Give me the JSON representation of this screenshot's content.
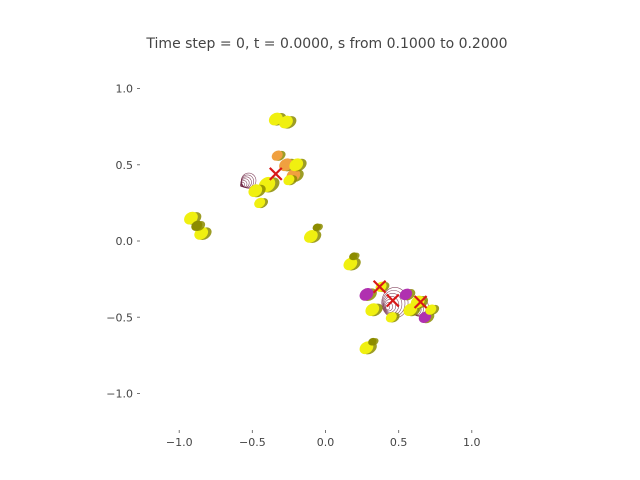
{
  "chart_data": {
    "type": "scatter",
    "title": "Time step = 0, t = 0.0000, s from 0.1000 to 0.2000",
    "xlabel": "",
    "ylabel": "",
    "xlim": [
      -1.2,
      1.2
    ],
    "ylim": [
      -1.2,
      1.2
    ],
    "x_ticks": [
      -1.0,
      -0.5,
      0.0,
      0.5,
      1.0
    ],
    "y_ticks": [
      1.0,
      0.5,
      0.0,
      -0.5,
      -1.0
    ],
    "x_tick_labels": [
      "−1.0",
      "−0.5",
      "0.0",
      "0.5",
      "1.0"
    ],
    "y_tick_labels": [
      "1.0",
      "0.5",
      "0.0",
      "−0.5",
      "−1.0"
    ],
    "grid": false,
    "legend": "none",
    "colors": {
      "yellow": "#f0f010",
      "olive": "#8c8c00",
      "orange": "#f0a040",
      "purple": "#b030b0",
      "cross": "#d81818",
      "contour": "#6b2040"
    },
    "blobs": [
      {
        "x": -0.34,
        "y": 0.8,
        "color": "yellow",
        "size": 0.05
      },
      {
        "x": -0.27,
        "y": 0.78,
        "color": "yellow",
        "size": 0.05
      },
      {
        "x": -0.4,
        "y": 0.37,
        "color": "yellow",
        "size": 0.06
      },
      {
        "x": -0.48,
        "y": 0.33,
        "color": "yellow",
        "size": 0.05
      },
      {
        "x": -0.45,
        "y": 0.25,
        "color": "yellow",
        "size": 0.04
      },
      {
        "x": -0.27,
        "y": 0.5,
        "color": "orange",
        "size": 0.05
      },
      {
        "x": -0.22,
        "y": 0.43,
        "color": "orange",
        "size": 0.05
      },
      {
        "x": -0.2,
        "y": 0.5,
        "color": "yellow",
        "size": 0.05
      },
      {
        "x": -0.25,
        "y": 0.4,
        "color": "yellow",
        "size": 0.04
      },
      {
        "x": -0.33,
        "y": 0.56,
        "color": "orange",
        "size": 0.04
      },
      {
        "x": -0.92,
        "y": 0.15,
        "color": "yellow",
        "size": 0.05
      },
      {
        "x": -0.85,
        "y": 0.05,
        "color": "yellow",
        "size": 0.05
      },
      {
        "x": -0.88,
        "y": 0.1,
        "color": "olive",
        "size": 0.04
      },
      {
        "x": -0.1,
        "y": 0.03,
        "color": "yellow",
        "size": 0.05
      },
      {
        "x": -0.06,
        "y": 0.09,
        "color": "olive",
        "size": 0.03
      },
      {
        "x": 0.17,
        "y": -0.15,
        "color": "yellow",
        "size": 0.05
      },
      {
        "x": 0.19,
        "y": -0.1,
        "color": "olive",
        "size": 0.03
      },
      {
        "x": 0.28,
        "y": -0.35,
        "color": "purple",
        "size": 0.05
      },
      {
        "x": 0.32,
        "y": -0.45,
        "color": "yellow",
        "size": 0.05
      },
      {
        "x": 0.38,
        "y": -0.3,
        "color": "yellow",
        "size": 0.04
      },
      {
        "x": 0.55,
        "y": -0.35,
        "color": "purple",
        "size": 0.045
      },
      {
        "x": 0.58,
        "y": -0.45,
        "color": "yellow",
        "size": 0.05
      },
      {
        "x": 0.63,
        "y": -0.4,
        "color": "yellow",
        "size": 0.05
      },
      {
        "x": 0.68,
        "y": -0.5,
        "color": "purple",
        "size": 0.045
      },
      {
        "x": 0.72,
        "y": -0.45,
        "color": "yellow",
        "size": 0.04
      },
      {
        "x": 0.45,
        "y": -0.5,
        "color": "yellow",
        "size": 0.04
      },
      {
        "x": 0.28,
        "y": -0.7,
        "color": "yellow",
        "size": 0.05
      },
      {
        "x": 0.32,
        "y": -0.66,
        "color": "olive",
        "size": 0.03
      }
    ],
    "contours": [
      {
        "x": 0.45,
        "y": -0.42,
        "rx": 0.09,
        "ry": 0.1
      },
      {
        "x": 0.62,
        "y": -0.45,
        "rx": 0.06,
        "ry": 0.06
      },
      {
        "x": -0.55,
        "y": 0.38,
        "rx": 0.05,
        "ry": 0.05
      }
    ],
    "crosses": [
      {
        "x": -0.34,
        "y": 0.44
      },
      {
        "x": 0.37,
        "y": -0.3
      },
      {
        "x": 0.46,
        "y": -0.39
      },
      {
        "x": 0.65,
        "y": -0.4
      }
    ]
  }
}
